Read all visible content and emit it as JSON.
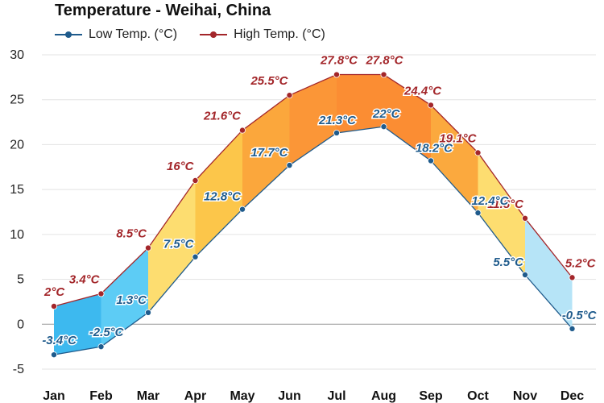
{
  "chart_data": {
    "type": "line",
    "title": "Temperature - Weihai, China",
    "categories": [
      "Jan",
      "Feb",
      "Mar",
      "Apr",
      "May",
      "Jun",
      "Jul",
      "Aug",
      "Sep",
      "Oct",
      "Nov",
      "Dec"
    ],
    "ylim": [
      -5,
      30
    ],
    "yticks": [
      -5,
      0,
      5,
      10,
      15,
      20,
      25,
      30
    ],
    "grid": true,
    "legend_position": "top-left",
    "series": [
      {
        "name": "Low Temp. (°C)",
        "color": "#1f5b8c",
        "values": [
          -3.4,
          -2.5,
          1.3,
          7.5,
          12.8,
          17.7,
          21.3,
          22,
          18.2,
          12.4,
          5.5,
          -0.5
        ],
        "labels": [
          "-3.4°C",
          "-2.5°C",
          "1.3°C",
          "7.5°C",
          "12.8°C",
          "17.7°C",
          "21.3°C",
          "22°C",
          "18.2°C",
          "12.4°C",
          "5.5°C",
          "-0.5°C"
        ]
      },
      {
        "name": "High Temp. (°C)",
        "color": "#a3262a",
        "values": [
          2,
          3.4,
          8.5,
          16,
          21.6,
          25.5,
          27.8,
          27.8,
          24.4,
          19.1,
          11.8,
          5.2
        ],
        "labels": [
          "2°C",
          "3.4°C",
          "8.5°C",
          "16°C",
          "21.6°C",
          "25.5°C",
          "27.8°C",
          "27.8°C",
          "24.4°C",
          "19.1°C",
          "11.8°C",
          "5.2°C"
        ]
      }
    ],
    "band_colors": [
      "#3db9ef",
      "#5dccf5",
      "#fddd70",
      "#fcc64a",
      "#fba73c",
      "#fb9637",
      "#fb8d33",
      "#fb8d33",
      "#fba93e",
      "#fddd70",
      "#b6e4f7",
      "#58c3f4"
    ]
  }
}
